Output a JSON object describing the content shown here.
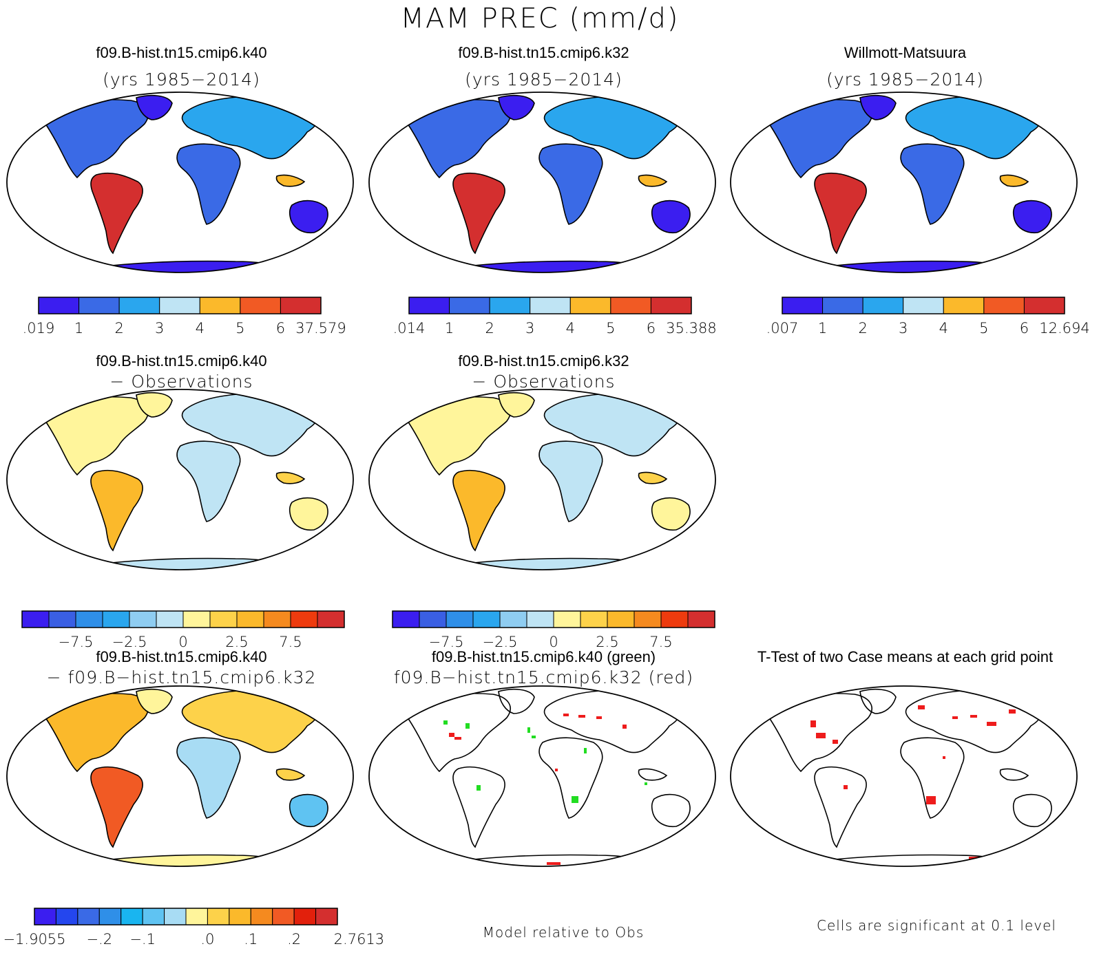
{
  "figure_title": "MAM PREC (mm/d)",
  "colors": {
    "abs": [
      "#3b1ef0",
      "#3a6ae6",
      "#2aa6ee",
      "#bfe4f4",
      "#fbb92b",
      "#f15a24",
      "#d42f2f"
    ],
    "diff": [
      "#3b1ef0",
      "#3a5fe3",
      "#2f8fe8",
      "#2aa6ee",
      "#8fcdf1",
      "#bfe4f4",
      "#fff59b",
      "#fdd24a",
      "#fbb92b",
      "#f58a1f",
      "#ee3b0e",
      "#d42f2f"
    ],
    "casediff": [
      "#3b1ef0",
      "#2446ee",
      "#3a6ae6",
      "#2f8fe8",
      "#19b5f0",
      "#5fc3f2",
      "#a8dcf4",
      "#fff59b",
      "#fdd24a",
      "#fbb92b",
      "#f58a1f",
      "#f15a24",
      "#e2200c",
      "#d42f2f"
    ],
    "ocean": "#ffffff",
    "sig_case1": "#22dd22",
    "sig_case2": "#ee1c1c"
  },
  "chart_data": [
    {
      "type": "heatmap",
      "title": "f09.B-hist.tn15.cmip6.k40",
      "subtitle": "(yrs 1985−2014)",
      "colorbar": {
        "ticks": [
          ".019",
          "1",
          "2",
          "3",
          "4",
          "5",
          "6",
          "37.579"
        ],
        "levels": [
          0.019,
          1,
          2,
          3,
          4,
          5,
          6,
          37.579
        ],
        "min": 0.019,
        "max": 37.579
      }
    },
    {
      "type": "heatmap",
      "title": "f09.B-hist.tn15.cmip6.k32",
      "subtitle": "(yrs 1985−2014)",
      "colorbar": {
        "ticks": [
          ".014",
          "1",
          "2",
          "3",
          "4",
          "5",
          "6",
          "35.388"
        ],
        "levels": [
          0.014,
          1,
          2,
          3,
          4,
          5,
          6,
          35.388
        ],
        "min": 0.014,
        "max": 35.388
      }
    },
    {
      "type": "heatmap",
      "title": "Willmott-Matsuura",
      "subtitle": "(yrs 1985−2014)",
      "colorbar": {
        "ticks": [
          ".007",
          "1",
          "2",
          "3",
          "4",
          "5",
          "6",
          "12.694"
        ],
        "levels": [
          0.007,
          1,
          2,
          3,
          4,
          5,
          6,
          12.694
        ],
        "min": 0.007,
        "max": 12.694
      }
    },
    {
      "type": "heatmap",
      "title": "f09.B-hist.tn15.cmip6.k40",
      "subtitle": "− Observations",
      "colorbar": {
        "ticks": [
          "−7.5",
          "−2.5",
          "0",
          "2.5",
          "7.5"
        ],
        "tick_boundaries": [
          2,
          4,
          6,
          8,
          10
        ]
      }
    },
    {
      "type": "heatmap",
      "title": "f09.B-hist.tn15.cmip6.k32",
      "subtitle": "− Observations",
      "colorbar": {
        "ticks": [
          "−7.5",
          "−2.5",
          "0",
          "2.5",
          "7.5"
        ],
        "tick_boundaries": [
          2,
          4,
          6,
          8,
          10
        ]
      }
    },
    {
      "type": "heatmap",
      "title": "f09.B-hist.tn15.cmip6.k40",
      "subtitle": "− f09.B−hist.tn15.cmip6.k32",
      "colorbar": {
        "ticks": [
          "−1.9055",
          "−.2",
          "−.1",
          ".0",
          ".1",
          ".2",
          "2.7613"
        ],
        "tick_boundaries": [
          0,
          3,
          5,
          8,
          10,
          12,
          15
        ],
        "min": -1.9055,
        "max": 2.7613
      }
    },
    {
      "type": "heatmap",
      "title": "f09.B-hist.tn15.cmip6.k40 (green)",
      "subtitle": "f09.B−hist.tn15.cmip6.k32 (red)",
      "footer": "Model relative to Obs"
    },
    {
      "type": "heatmap",
      "title": "T-Test of two Case means at each grid point",
      "footer": "Cells are significant at 0.1 level"
    }
  ]
}
